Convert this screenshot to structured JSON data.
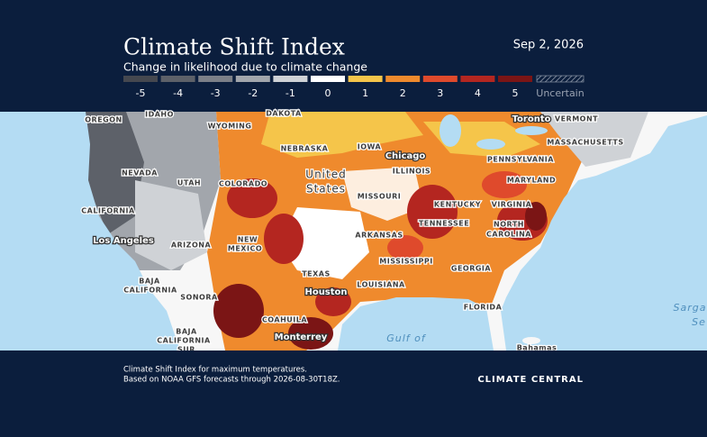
{
  "header": {
    "title": "Climate Shift Index",
    "subtitle": "Change in likelihood due to climate change",
    "date": "Sep 2, 2026"
  },
  "legend": {
    "items": [
      {
        "value": -5,
        "color": "#45484f"
      },
      {
        "value": -4,
        "color": "#5d6169"
      },
      {
        "value": -3,
        "color": "#7c8088"
      },
      {
        "value": -2,
        "color": "#a2a6ac"
      },
      {
        "value": -1,
        "color": "#cfd2d6"
      },
      {
        "value": 0,
        "color": "#ffffff"
      },
      {
        "value": 1,
        "color": "#f5c54a"
      },
      {
        "value": 2,
        "color": "#ef8a2d"
      },
      {
        "value": 3,
        "color": "#df4a2c"
      },
      {
        "value": 4,
        "color": "#b42620"
      },
      {
        "value": 5,
        "color": "#7b1515"
      }
    ],
    "uncertain": "Uncertain"
  },
  "map": {
    "regions": [
      "OREGON",
      "IDAHO",
      "DAKOTA",
      "WYOMING",
      "NEBRASKA",
      "IOWA",
      "ILLINOIS",
      "VERMONT",
      "MASSACHUSETTS",
      "PENNSYLVANIA",
      "NEVADA",
      "UTAH",
      "COLORADO",
      "MISSOURI",
      "KENTUCKY",
      "MARYLAND",
      "CALIFORNIA",
      "TENNESSEE",
      "VIRGINIA",
      "NORTH",
      "CAROLINA",
      "NEW",
      "MEXICO",
      "ARIZONA",
      "ARKANSAS",
      "MISSISSIPPI",
      "GEORGIA",
      "TEXAS",
      "BAJA",
      "CALIFORNIA",
      "LOUISIANA",
      "SONORA",
      "FLORIDA",
      "COAHUILA",
      "BAJA",
      "CALIFORNIA",
      "SUR"
    ],
    "country": [
      "United",
      "States"
    ],
    "cities": [
      "Chicago",
      "Toronto",
      "Los Angeles",
      "Houston",
      "Monterrey",
      "Bahamas"
    ],
    "water": [
      "Gulf of",
      "Sarga",
      "Se"
    ]
  },
  "footer": {
    "notes": [
      "Climate Shift Index for maximum temperatures.",
      "Based on NOAA GFS forecasts through 2026-08-30T18Z."
    ],
    "brand": "CLIMATE CENTRAL"
  }
}
